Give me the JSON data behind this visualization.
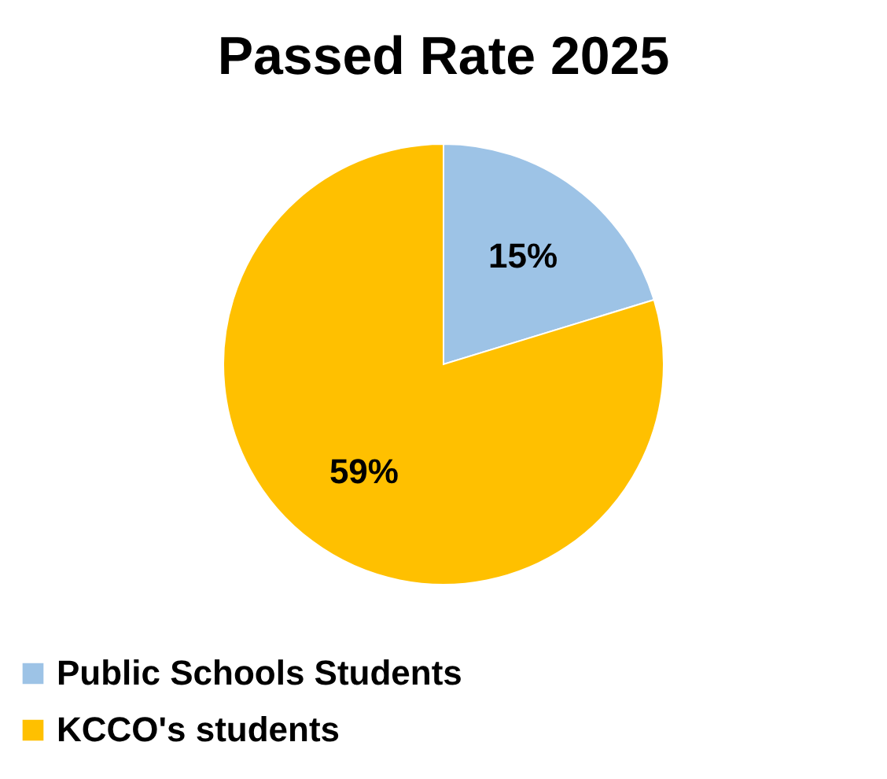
{
  "chart_data": {
    "type": "pie",
    "title": "Passed Rate 2025",
    "categories": [
      "Public Schools Students",
      "KCCO's students"
    ],
    "values": [
      15,
      59
    ],
    "colors": [
      "#9dc3e6",
      "#ffc000"
    ],
    "value_labels": [
      "15%",
      "59%"
    ],
    "legend": "bottom"
  }
}
